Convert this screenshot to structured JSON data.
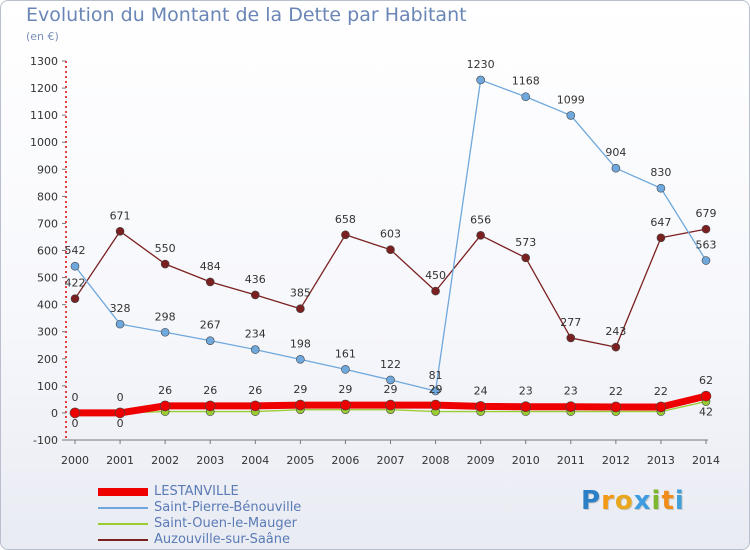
{
  "header": {
    "title": "Evolution du Montant de la Dette par Habitant",
    "subtitle": "(en €)"
  },
  "logo": {
    "letters": [
      "P",
      "r",
      "o",
      "x",
      "i",
      "t",
      "i"
    ],
    "colors": [
      "#2a7fc7",
      "#f29a16",
      "#e8a71d",
      "#3d9de0",
      "#7cb72f",
      "#ef8c1a",
      "#3f9fd8"
    ]
  },
  "chart_data": {
    "type": "line",
    "title": "Evolution du Montant de la Dette par Habitant",
    "ylabel": "(en €)",
    "xlabel": "",
    "x": [
      "2000",
      "2001",
      "2002",
      "2003",
      "2004",
      "2005",
      "2006",
      "2007",
      "2008",
      "2009",
      "2010",
      "2011",
      "2012",
      "2013",
      "2014"
    ],
    "ylim": [
      -100,
      1300
    ],
    "yticks": [
      -100,
      0,
      100,
      200,
      300,
      400,
      500,
      600,
      700,
      800,
      900,
      1000,
      1100,
      1200,
      1300
    ],
    "grid": false,
    "legend_position": "bottom-left",
    "series": [
      {
        "name": "LESTANVILLE",
        "color": "#ee0000",
        "values": [
          0,
          0,
          26,
          26,
          26,
          29,
          29,
          29,
          29,
          24,
          23,
          23,
          22,
          22,
          62
        ],
        "labels": [
          "0",
          "0",
          "26",
          "26",
          "26",
          "29",
          "29",
          "29",
          "29",
          "24",
          "23",
          "23",
          "22",
          "22",
          "62"
        ]
      },
      {
        "name": "Saint-Pierre-Bénouville",
        "color": "#6fa8dc",
        "values": [
          542,
          328,
          298,
          267,
          234,
          198,
          161,
          122,
          81,
          1230,
          1168,
          1099,
          904,
          830,
          563
        ],
        "labels": [
          "542",
          "328",
          "298",
          "267",
          "234",
          "198",
          "161",
          "122",
          "81",
          "1230",
          "1168",
          "1099",
          "904",
          "830",
          "563"
        ]
      },
      {
        "name": "Saint-Ouen-le-Mauger",
        "color": "#9acd32",
        "values": [
          0,
          0,
          5,
          5,
          5,
          12,
          12,
          12,
          5,
          5,
          5,
          5,
          5,
          5,
          42
        ],
        "labels": [
          "0",
          "0",
          "",
          "",
          "",
          "",
          "",
          "",
          "",
          "",
          "",
          "",
          "",
          "",
          "42"
        ]
      },
      {
        "name": "Auzouville-sur-Saâne",
        "color": "#7b2020",
        "values": [
          422,
          671,
          550,
          484,
          436,
          385,
          658,
          603,
          450,
          656,
          573,
          277,
          243,
          647,
          679
        ],
        "labels": [
          "422",
          "671",
          "550",
          "484",
          "436",
          "385",
          "658",
          "603",
          "450",
          "656",
          "573",
          "277",
          "243",
          "647",
          "679"
        ]
      }
    ]
  }
}
